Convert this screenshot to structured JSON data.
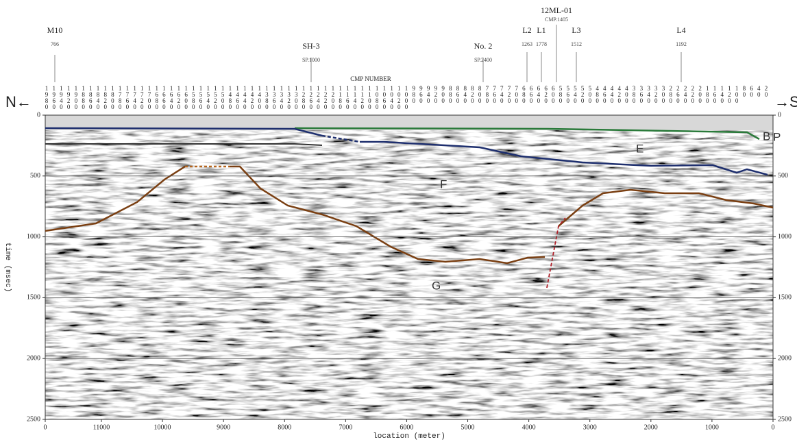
{
  "chart_data": {
    "type": "seismic-section",
    "xlabel": "location (meter)",
    "ylabel": "time (msec)",
    "xlim": [
      11920,
      0
    ],
    "xticks": [
      {
        "value": 11920,
        "label": "0"
      },
      11000,
      10000,
      9000,
      8000,
      7000,
      6000,
      5000,
      4000,
      3000,
      2000,
      1000,
      0
    ],
    "ylim": [
      2500,
      0
    ],
    "yticks": [
      0,
      500,
      1000,
      1500,
      2000,
      2500
    ],
    "grid": true,
    "cmp_label": "CMP NUMBER",
    "cmp_numbers": [
      1980,
      1960,
      1940,
      1920,
      1900,
      1880,
      1860,
      1840,
      1820,
      1800,
      1780,
      1760,
      1740,
      1720,
      1700,
      1680,
      1660,
      1640,
      1620,
      1600,
      1580,
      1560,
      1540,
      1520,
      1500,
      1480,
      1460,
      1440,
      1420,
      1400,
      1380,
      1360,
      1340,
      1320,
      1300,
      1280,
      1260,
      1240,
      1220,
      1200,
      1180,
      1160,
      1140,
      1120,
      1100,
      1080,
      1060,
      1040,
      1020,
      1000,
      980,
      960,
      940,
      920,
      900,
      880,
      860,
      840,
      820,
      800,
      780,
      760,
      740,
      720,
      700,
      680,
      660,
      640,
      620,
      600,
      580,
      560,
      540,
      520,
      500,
      480,
      460,
      440,
      420,
      400,
      380,
      360,
      340,
      320,
      300,
      280,
      260,
      240,
      220,
      200,
      180,
      160,
      140,
      120,
      100,
      80,
      60,
      40,
      20
    ],
    "wells": [
      {
        "name": "M10",
        "sub": "766"
      },
      {
        "name": "SH-3",
        "sub": "SP.1000"
      },
      {
        "name": "No. 2",
        "sub": "SP.2400"
      },
      {
        "name": "L2",
        "sub": "1263"
      },
      {
        "name": "L1",
        "sub": "1778"
      },
      {
        "name": "12ML-01",
        "sub": "CMP.1405"
      },
      {
        "name": "L3",
        "sub": "1512"
      },
      {
        "name": "L4",
        "sub": "1192"
      }
    ],
    "horizons": [
      "B",
      "P",
      "E",
      "F",
      "G"
    ],
    "directions": [
      "N←",
      "→S"
    ]
  }
}
